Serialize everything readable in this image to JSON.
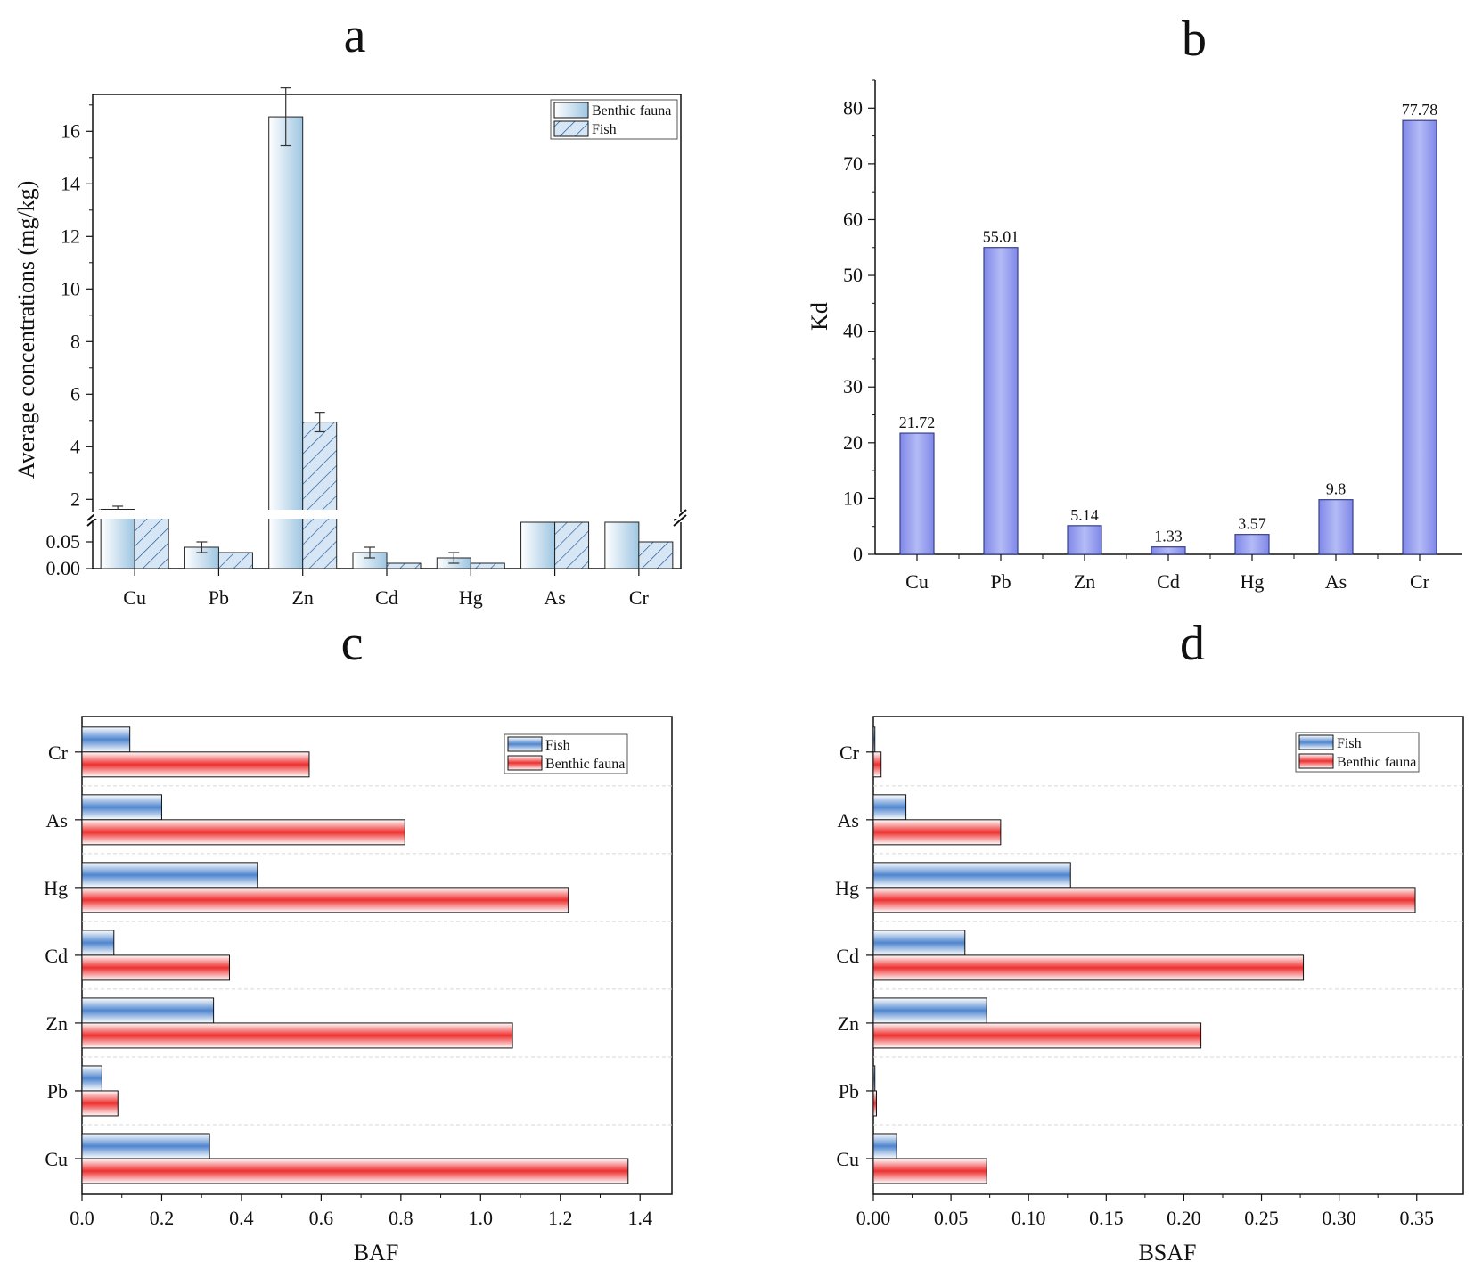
{
  "figure": {
    "panel_letters": [
      "a",
      "b",
      "c",
      "d"
    ]
  },
  "colors": {
    "benthic_a_light": "#ffffff",
    "benthic_a_dark": "#9fc6e2",
    "fish_a": "#4a8cc8",
    "kd_bar": "#9aa3f0",
    "kd_bar_edge": "#3a3f8a",
    "fish_h": "#5b8fd0",
    "benthic_h": "#ee3a3a",
    "grid": "#d8d8d8"
  },
  "chart_data": [
    {
      "panel": "a",
      "type": "bar",
      "categories": [
        "Cu",
        "Pb",
        "Zn",
        "Cd",
        "Hg",
        "As",
        "Cr"
      ],
      "series": [
        {
          "name": "Benthic fauna",
          "values": [
            1.62,
            0.04,
            16.55,
            0.03,
            0.02,
            null,
            null
          ],
          "errors": [
            0.12,
            0.01,
            1.1,
            0.01,
            0.01,
            null,
            null
          ]
        },
        {
          "name": "Fish",
          "values": [
            0.83,
            0.03,
            4.94,
            0.01,
            0.01,
            null,
            0.05
          ],
          "errors": [
            null,
            null,
            0.37,
            null,
            null,
            null,
            null
          ]
        }
      ],
      "ylabel": "Average concentrations (mg/kg)",
      "xlabel": "",
      "axis_break": {
        "lower": [
          0,
          0.1
        ],
        "upper": [
          1.4,
          17.4
        ]
      },
      "yticks_lower": [
        "0.00",
        "0.05"
      ],
      "yticks_upper": [
        "2",
        "4",
        "6",
        "8",
        "10",
        "12",
        "14",
        "16"
      ],
      "legend": [
        "Benthic fauna",
        "Fish"
      ],
      "legend_position": "top-right"
    },
    {
      "panel": "b",
      "type": "bar",
      "categories": [
        "Cu",
        "Pb",
        "Zn",
        "Cd",
        "Hg",
        "As",
        "Cr"
      ],
      "values": [
        21.72,
        55.01,
        5.14,
        1.33,
        3.57,
        9.8,
        77.78
      ],
      "labels": [
        "21.72",
        "55.01",
        "5.14",
        "1.33",
        "3.57",
        "9.8",
        "77.78"
      ],
      "ylabel": "Kd",
      "xlabel": "",
      "ylim": [
        0,
        85
      ],
      "yticks": [
        "0",
        "10",
        "20",
        "30",
        "40",
        "50",
        "60",
        "70",
        "80"
      ]
    },
    {
      "panel": "c",
      "type": "bar",
      "orientation": "horizontal",
      "categories": [
        "Cu",
        "Pb",
        "Zn",
        "Cd",
        "Hg",
        "As",
        "Cr"
      ],
      "series": [
        {
          "name": "Fish",
          "values": [
            0.32,
            0.05,
            0.33,
            0.08,
            0.44,
            0.2,
            0.12
          ]
        },
        {
          "name": "Benthic fauna",
          "values": [
            1.37,
            0.09,
            1.08,
            0.37,
            1.22,
            0.81,
            0.57
          ]
        }
      ],
      "xlabel": "BAF",
      "ylabel": "",
      "xlim": [
        0,
        1.48
      ],
      "xticks": [
        "0.0",
        "0.2",
        "0.4",
        "0.6",
        "0.8",
        "1.0",
        "1.2",
        "1.4"
      ],
      "legend": [
        "Fish",
        "Benthic fauna"
      ],
      "legend_position": "top-right",
      "grid": true
    },
    {
      "panel": "d",
      "type": "bar",
      "orientation": "horizontal",
      "categories": [
        "Cu",
        "Pb",
        "Zn",
        "Cd",
        "Hg",
        "As",
        "Cr"
      ],
      "series": [
        {
          "name": "Fish",
          "values": [
            0.015,
            0.001,
            0.073,
            0.059,
            0.127,
            0.021,
            0.001
          ]
        },
        {
          "name": "Benthic fauna",
          "values": [
            0.073,
            0.002,
            0.211,
            0.277,
            0.349,
            0.082,
            0.005
          ]
        }
      ],
      "xlabel": "BSAF",
      "ylabel": "",
      "xlim": [
        0,
        0.38
      ],
      "xticks": [
        "0.00",
        "0.05",
        "0.10",
        "0.15",
        "0.20",
        "0.25",
        "0.30",
        "0.35"
      ],
      "legend": [
        "Fish",
        "Benthic fauna"
      ],
      "legend_position": "top-right",
      "grid": true
    }
  ]
}
